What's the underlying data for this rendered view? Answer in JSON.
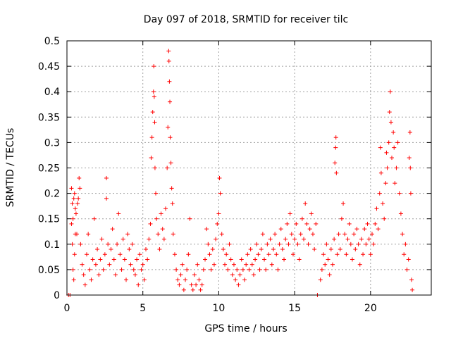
{
  "chart_data": {
    "type": "scatter",
    "title": "Day 097 of 2018, SRMTID for receiver tilc",
    "xlabel": "GPS time / hours",
    "ylabel": "SRMTID / TECUs",
    "xlim": [
      0,
      24
    ],
    "ylim": [
      0,
      0.5
    ],
    "xticks": [
      0,
      5,
      10,
      15,
      20
    ],
    "xtick_labels": [
      "0",
      "5",
      "10",
      "15",
      "20"
    ],
    "yticks": [
      0,
      0.05,
      0.1,
      0.15,
      0.2,
      0.25,
      0.3,
      0.35,
      0.4,
      0.45,
      0.5
    ],
    "ytick_labels": [
      "0",
      "0.05",
      "0.1",
      "0.15",
      "0.2",
      "0.25",
      "0.3",
      "0.35",
      "0.4",
      "0.45",
      "0.5"
    ],
    "grid": true,
    "marker": "+",
    "color": "#ff0000",
    "series": [
      {
        "name": "SRMTID",
        "points": [
          [
            0.1,
            0.0
          ],
          [
            0.2,
            0.0
          ],
          [
            0.3,
            0.21
          ],
          [
            0.35,
            0.18
          ],
          [
            0.4,
            0.15
          ],
          [
            0.45,
            0.19
          ],
          [
            0.5,
            0.2
          ],
          [
            0.55,
            0.17
          ],
          [
            0.6,
            0.16
          ],
          [
            0.65,
            0.12
          ],
          [
            0.7,
            0.18
          ],
          [
            0.75,
            0.19
          ],
          [
            0.8,
            0.23
          ],
          [
            0.85,
            0.21
          ],
          [
            0.3,
            0.14
          ],
          [
            0.35,
            0.1
          ],
          [
            0.4,
            0.05
          ],
          [
            0.45,
            0.03
          ],
          [
            0.5,
            0.08
          ],
          [
            0.55,
            0.12
          ],
          [
            0.9,
            0.1
          ],
          [
            1.0,
            0.06
          ],
          [
            1.1,
            0.04
          ],
          [
            1.2,
            0.02
          ],
          [
            1.3,
            0.08
          ],
          [
            1.4,
            0.12
          ],
          [
            1.5,
            0.05
          ],
          [
            1.6,
            0.03
          ],
          [
            1.7,
            0.07
          ],
          [
            1.8,
            0.15
          ],
          [
            1.9,
            0.06
          ],
          [
            2.0,
            0.09
          ],
          [
            2.1,
            0.04
          ],
          [
            2.2,
            0.07
          ],
          [
            2.3,
            0.11
          ],
          [
            2.4,
            0.05
          ],
          [
            2.5,
            0.08
          ],
          [
            2.6,
            0.23
          ],
          [
            2.6,
            0.19
          ],
          [
            2.7,
            0.1
          ],
          [
            2.8,
            0.06
          ],
          [
            2.9,
            0.09
          ],
          [
            3.0,
            0.13
          ],
          [
            3.1,
            0.07
          ],
          [
            3.2,
            0.04
          ],
          [
            3.3,
            0.1
          ],
          [
            3.4,
            0.16
          ],
          [
            3.5,
            0.08
          ],
          [
            3.6,
            0.05
          ],
          [
            3.7,
            0.11
          ],
          [
            3.8,
            0.07
          ],
          [
            3.9,
            0.03
          ],
          [
            4.0,
            0.12
          ],
          [
            4.1,
            0.09
          ],
          [
            4.2,
            0.06
          ],
          [
            4.3,
            0.1
          ],
          [
            4.4,
            0.05
          ],
          [
            4.5,
            0.04
          ],
          [
            4.6,
            0.07
          ],
          [
            4.7,
            0.02
          ],
          [
            4.8,
            0.08
          ],
          [
            4.9,
            0.05
          ],
          [
            5.0,
            0.06
          ],
          [
            5.1,
            0.03
          ],
          [
            5.2,
            0.09
          ],
          [
            5.3,
            0.07
          ],
          [
            5.4,
            0.11
          ],
          [
            5.5,
            0.14
          ],
          [
            5.55,
            0.27
          ],
          [
            5.6,
            0.31
          ],
          [
            5.65,
            0.36
          ],
          [
            5.7,
            0.4
          ],
          [
            5.72,
            0.45
          ],
          [
            5.75,
            0.39
          ],
          [
            5.78,
            0.34
          ],
          [
            5.8,
            0.25
          ],
          [
            5.85,
            0.2
          ],
          [
            5.9,
            0.15
          ],
          [
            6.0,
            0.12
          ],
          [
            6.1,
            0.09
          ],
          [
            6.2,
            0.16
          ],
          [
            6.3,
            0.13
          ],
          [
            6.4,
            0.11
          ],
          [
            6.5,
            0.17
          ],
          [
            6.6,
            0.25
          ],
          [
            6.65,
            0.33
          ],
          [
            6.7,
            0.48
          ],
          [
            6.72,
            0.46
          ],
          [
            6.75,
            0.42
          ],
          [
            6.78,
            0.38
          ],
          [
            6.8,
            0.31
          ],
          [
            6.85,
            0.26
          ],
          [
            6.9,
            0.21
          ],
          [
            6.95,
            0.18
          ],
          [
            7.0,
            0.12
          ],
          [
            7.1,
            0.08
          ],
          [
            7.2,
            0.05
          ],
          [
            7.3,
            0.03
          ],
          [
            7.4,
            0.02
          ],
          [
            7.5,
            0.04
          ],
          [
            7.6,
            0.06
          ],
          [
            7.7,
            0.01
          ],
          [
            7.8,
            0.03
          ],
          [
            7.9,
            0.05
          ],
          [
            8.0,
            0.08
          ],
          [
            8.1,
            0.15
          ],
          [
            8.2,
            0.02
          ],
          [
            8.3,
            0.01
          ],
          [
            8.4,
            0.04
          ],
          [
            8.5,
            0.02
          ],
          [
            8.6,
            0.06
          ],
          [
            8.7,
            0.03
          ],
          [
            8.8,
            0.01
          ],
          [
            8.9,
            0.02
          ],
          [
            9.0,
            0.05
          ],
          [
            9.1,
            0.07
          ],
          [
            9.2,
            0.13
          ],
          [
            9.3,
            0.1
          ],
          [
            9.4,
            0.08
          ],
          [
            9.5,
            0.05
          ],
          [
            9.6,
            0.09
          ],
          [
            9.7,
            0.06
          ],
          [
            9.8,
            0.11
          ],
          [
            9.9,
            0.14
          ],
          [
            10.0,
            0.16
          ],
          [
            10.05,
            0.23
          ],
          [
            10.1,
            0.2
          ],
          [
            10.2,
            0.12
          ],
          [
            10.3,
            0.09
          ],
          [
            10.4,
            0.06
          ],
          [
            10.5,
            0.08
          ],
          [
            10.6,
            0.05
          ],
          [
            10.7,
            0.1
          ],
          [
            10.8,
            0.07
          ],
          [
            10.9,
            0.04
          ],
          [
            11.0,
            0.06
          ],
          [
            11.1,
            0.03
          ],
          [
            11.2,
            0.05
          ],
          [
            11.3,
            0.02
          ],
          [
            11.4,
            0.04
          ],
          [
            11.5,
            0.07
          ],
          [
            11.6,
            0.05
          ],
          [
            11.7,
            0.03
          ],
          [
            11.8,
            0.06
          ],
          [
            11.9,
            0.08
          ],
          [
            12.0,
            0.05
          ],
          [
            12.1,
            0.09
          ],
          [
            12.2,
            0.06
          ],
          [
            12.3,
            0.04
          ],
          [
            12.4,
            0.07
          ],
          [
            12.5,
            0.1
          ],
          [
            12.6,
            0.08
          ],
          [
            12.7,
            0.05
          ],
          [
            12.8,
            0.09
          ],
          [
            12.9,
            0.12
          ],
          [
            13.0,
            0.07
          ],
          [
            13.1,
            0.05
          ],
          [
            13.2,
            0.1
          ],
          [
            13.3,
            0.08
          ],
          [
            13.4,
            0.11
          ],
          [
            13.5,
            0.06
          ],
          [
            13.6,
            0.09
          ],
          [
            13.7,
            0.12
          ],
          [
            13.8,
            0.08
          ],
          [
            13.9,
            0.05
          ],
          [
            14.0,
            0.1
          ],
          [
            14.1,
            0.13
          ],
          [
            14.2,
            0.09
          ],
          [
            14.3,
            0.07
          ],
          [
            14.4,
            0.11
          ],
          [
            14.5,
            0.14
          ],
          [
            14.6,
            0.1
          ],
          [
            14.7,
            0.16
          ],
          [
            14.8,
            0.12
          ],
          [
            14.9,
            0.08
          ],
          [
            15.0,
            0.11
          ],
          [
            15.1,
            0.14
          ],
          [
            15.2,
            0.1
          ],
          [
            15.3,
            0.07
          ],
          [
            15.4,
            0.12
          ],
          [
            15.5,
            0.15
          ],
          [
            15.6,
            0.11
          ],
          [
            15.7,
            0.18
          ],
          [
            15.8,
            0.14
          ],
          [
            15.9,
            0.1
          ],
          [
            16.0,
            0.13
          ],
          [
            16.1,
            0.16
          ],
          [
            16.2,
            0.12
          ],
          [
            16.3,
            0.09
          ],
          [
            16.4,
            0.14
          ],
          [
            16.5,
            0.0
          ],
          [
            16.7,
            0.03
          ],
          [
            16.8,
            0.05
          ],
          [
            16.9,
            0.08
          ],
          [
            17.0,
            0.06
          ],
          [
            17.1,
            0.1
          ],
          [
            17.2,
            0.07
          ],
          [
            17.3,
            0.04
          ],
          [
            17.4,
            0.09
          ],
          [
            17.5,
            0.06
          ],
          [
            17.6,
            0.11
          ],
          [
            17.65,
            0.26
          ],
          [
            17.7,
            0.29
          ],
          [
            17.72,
            0.31
          ],
          [
            17.75,
            0.24
          ],
          [
            17.8,
            0.08
          ],
          [
            17.9,
            0.12
          ],
          [
            18.0,
            0.09
          ],
          [
            18.1,
            0.15
          ],
          [
            18.2,
            0.18
          ],
          [
            18.3,
            0.12
          ],
          [
            18.4,
            0.08
          ],
          [
            18.5,
            0.11
          ],
          [
            18.6,
            0.14
          ],
          [
            18.7,
            0.1
          ],
          [
            18.8,
            0.07
          ],
          [
            18.9,
            0.12
          ],
          [
            19.0,
            0.09
          ],
          [
            19.1,
            0.13
          ],
          [
            19.2,
            0.1
          ],
          [
            19.3,
            0.06
          ],
          [
            19.4,
            0.11
          ],
          [
            19.5,
            0.08
          ],
          [
            19.6,
            0.13
          ],
          [
            19.7,
            0.1
          ],
          [
            19.8,
            0.14
          ],
          [
            19.9,
            0.11
          ],
          [
            20.0,
            0.08
          ],
          [
            20.1,
            0.12
          ],
          [
            20.2,
            0.1
          ],
          [
            20.3,
            0.14
          ],
          [
            20.4,
            0.17
          ],
          [
            20.5,
            0.13
          ],
          [
            20.6,
            0.2
          ],
          [
            20.65,
            0.29
          ],
          [
            20.7,
            0.24
          ],
          [
            20.8,
            0.18
          ],
          [
            20.9,
            0.15
          ],
          [
            21.0,
            0.22
          ],
          [
            21.05,
            0.28
          ],
          [
            21.1,
            0.25
          ],
          [
            21.2,
            0.3
          ],
          [
            21.25,
            0.36
          ],
          [
            21.3,
            0.4
          ],
          [
            21.35,
            0.34
          ],
          [
            21.4,
            0.27
          ],
          [
            21.5,
            0.32
          ],
          [
            21.55,
            0.29
          ],
          [
            21.6,
            0.22
          ],
          [
            21.7,
            0.25
          ],
          [
            21.8,
            0.3
          ],
          [
            21.9,
            0.2
          ],
          [
            22.0,
            0.16
          ],
          [
            22.1,
            0.12
          ],
          [
            22.2,
            0.08
          ],
          [
            22.3,
            0.1
          ],
          [
            22.4,
            0.05
          ],
          [
            22.5,
            0.07
          ],
          [
            22.55,
            0.27
          ],
          [
            22.6,
            0.32
          ],
          [
            22.62,
            0.25
          ],
          [
            22.65,
            0.2
          ],
          [
            22.7,
            0.03
          ],
          [
            22.75,
            0.01
          ]
        ]
      }
    ]
  }
}
